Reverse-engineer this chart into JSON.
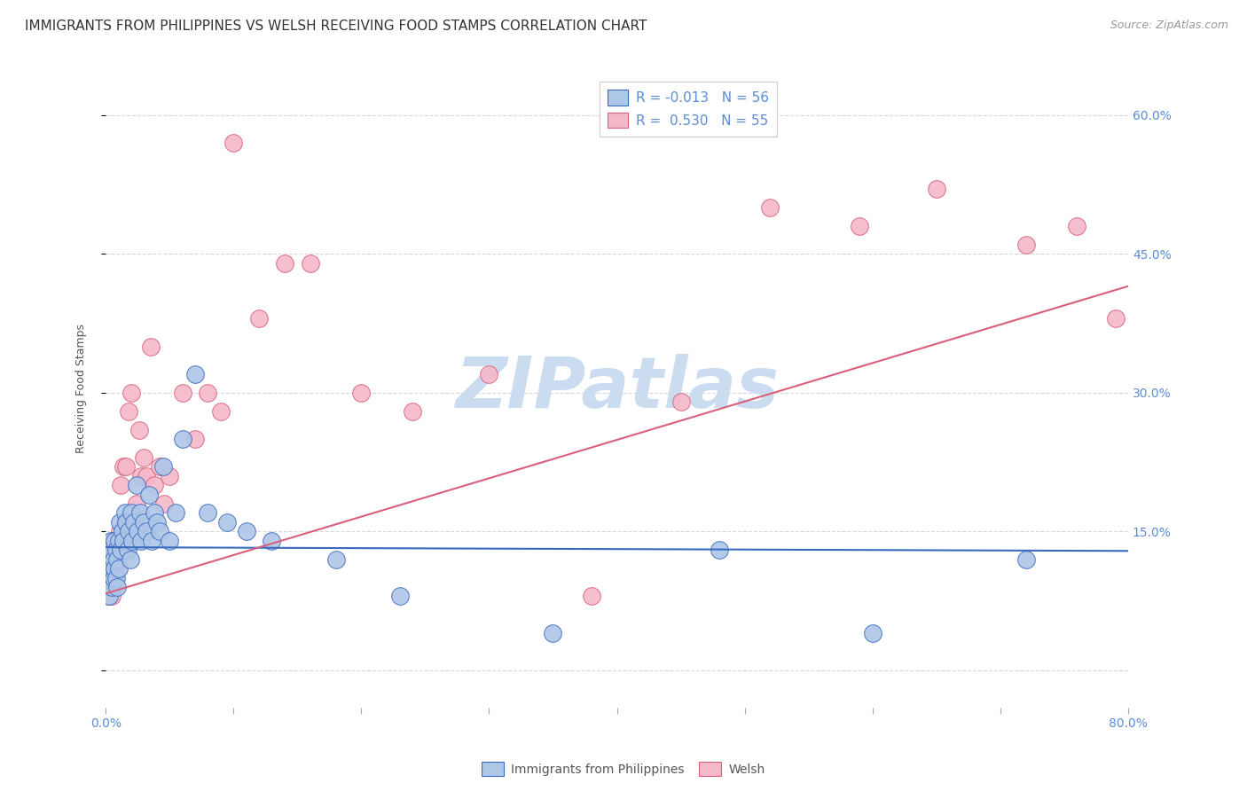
{
  "title": "IMMIGRANTS FROM PHILIPPINES VS WELSH RECEIVING FOOD STAMPS CORRELATION CHART",
  "source": "Source: ZipAtlas.com",
  "ylabel": "Receiving Food Stamps",
  "xlim": [
    0.0,
    0.8
  ],
  "ylim": [
    -0.04,
    0.65
  ],
  "yticks": [
    0.0,
    0.15,
    0.3,
    0.45,
    0.6
  ],
  "ytick_labels": [
    "",
    "15.0%",
    "30.0%",
    "45.0%",
    "60.0%"
  ],
  "xticks": [
    0.0,
    0.1,
    0.2,
    0.3,
    0.4,
    0.5,
    0.6,
    0.7,
    0.8
  ],
  "xtick_labels": [
    "0.0%",
    "",
    "",
    "",
    "",
    "",
    "",
    "",
    "80.0%"
  ],
  "watermark": "ZIPatlas",
  "legend_blue": "R = -0.013   N = 56",
  "legend_pink": "R =  0.530   N = 55",
  "blue_fill": "#aec6e8",
  "pink_fill": "#f5b8c8",
  "blue_edge": "#3a6bbf",
  "pink_edge": "#d9607a",
  "blue_line": "#3a6bbf",
  "pink_line": "#d9607a",
  "blue_slope": -0.005,
  "blue_intercept": 0.133,
  "pink_slope": 0.415,
  "pink_intercept": 0.083,
  "tick_color": "#5b8dd9",
  "grid_color": "#d8d8d8",
  "watermark_color": "#ccdcf0",
  "title_color": "#333333",
  "source_color": "#999999",
  "ylabel_color": "#555555",
  "background": "#ffffff",
  "blue_x": [
    0.001,
    0.002,
    0.003,
    0.003,
    0.004,
    0.004,
    0.005,
    0.005,
    0.006,
    0.006,
    0.007,
    0.007,
    0.008,
    0.008,
    0.009,
    0.009,
    0.01,
    0.01,
    0.011,
    0.012,
    0.013,
    0.014,
    0.015,
    0.016,
    0.017,
    0.018,
    0.019,
    0.02,
    0.021,
    0.022,
    0.024,
    0.025,
    0.027,
    0.028,
    0.03,
    0.032,
    0.034,
    0.036,
    0.038,
    0.04,
    0.042,
    0.045,
    0.05,
    0.055,
    0.06,
    0.07,
    0.08,
    0.095,
    0.11,
    0.13,
    0.18,
    0.23,
    0.35,
    0.48,
    0.6,
    0.72
  ],
  "blue_y": [
    0.12,
    0.1,
    0.13,
    0.08,
    0.11,
    0.14,
    0.09,
    0.13,
    0.12,
    0.1,
    0.14,
    0.11,
    0.1,
    0.13,
    0.12,
    0.09,
    0.14,
    0.11,
    0.16,
    0.13,
    0.15,
    0.14,
    0.17,
    0.16,
    0.13,
    0.15,
    0.12,
    0.17,
    0.14,
    0.16,
    0.2,
    0.15,
    0.17,
    0.14,
    0.16,
    0.15,
    0.19,
    0.14,
    0.17,
    0.16,
    0.15,
    0.22,
    0.14,
    0.17,
    0.25,
    0.32,
    0.17,
    0.16,
    0.15,
    0.14,
    0.12,
    0.08,
    0.04,
    0.13,
    0.04,
    0.12
  ],
  "pink_x": [
    0.001,
    0.002,
    0.002,
    0.003,
    0.003,
    0.004,
    0.004,
    0.005,
    0.005,
    0.006,
    0.006,
    0.007,
    0.007,
    0.008,
    0.009,
    0.01,
    0.011,
    0.012,
    0.013,
    0.014,
    0.015,
    0.016,
    0.017,
    0.018,
    0.02,
    0.022,
    0.024,
    0.026,
    0.028,
    0.03,
    0.032,
    0.035,
    0.038,
    0.042,
    0.046,
    0.05,
    0.06,
    0.07,
    0.08,
    0.09,
    0.1,
    0.12,
    0.14,
    0.16,
    0.2,
    0.24,
    0.3,
    0.38,
    0.45,
    0.52,
    0.59,
    0.65,
    0.72,
    0.76,
    0.79
  ],
  "pink_y": [
    0.1,
    0.11,
    0.08,
    0.13,
    0.09,
    0.12,
    0.1,
    0.14,
    0.08,
    0.11,
    0.13,
    0.1,
    0.12,
    0.14,
    0.11,
    0.13,
    0.15,
    0.2,
    0.13,
    0.22,
    0.16,
    0.22,
    0.14,
    0.28,
    0.3,
    0.16,
    0.18,
    0.26,
    0.21,
    0.23,
    0.21,
    0.35,
    0.2,
    0.22,
    0.18,
    0.21,
    0.3,
    0.25,
    0.3,
    0.28,
    0.57,
    0.38,
    0.44,
    0.44,
    0.3,
    0.28,
    0.32,
    0.08,
    0.29,
    0.5,
    0.48,
    0.52,
    0.46,
    0.48,
    0.38
  ]
}
